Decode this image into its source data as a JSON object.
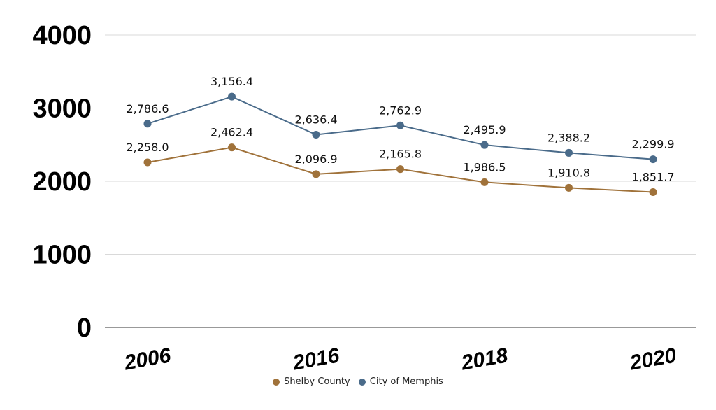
{
  "chart_data": {
    "type": "line",
    "x": [
      "2006",
      "",
      "2016",
      "",
      "2018",
      "",
      "2020"
    ],
    "ylim": [
      0,
      4000
    ],
    "yticks": [
      0,
      1000,
      2000,
      3000,
      4000
    ],
    "ytick_labels": [
      "0",
      "1000",
      "2000",
      "3000",
      "4000"
    ],
    "grid": true,
    "legend_position": "bottom",
    "series": [
      {
        "name": "Shelby County",
        "color": "#A0723A",
        "values": [
          2258.0,
          2462.4,
          2096.9,
          2165.8,
          1986.5,
          1910.8,
          1851.7
        ],
        "labels": [
          "2,258.0",
          "2,462.4",
          "2,096.9",
          "2,165.8",
          "1,986.5",
          "1,910.8",
          "1,851.7"
        ]
      },
      {
        "name": "City of Memphis",
        "color": "#4A6B8A",
        "values": [
          2786.6,
          3156.4,
          2636.4,
          2762.9,
          2495.9,
          2388.2,
          2299.9
        ],
        "labels": [
          "2,786.6",
          "3,156.4",
          "2,636.4",
          "2,762.9",
          "2,495.9",
          "2,388.2",
          "2,299.9"
        ]
      }
    ]
  },
  "legend": {
    "items": [
      {
        "label": "Shelby County",
        "color": "#A0723A"
      },
      {
        "label": "City of Memphis",
        "color": "#4A6B8A"
      }
    ]
  }
}
